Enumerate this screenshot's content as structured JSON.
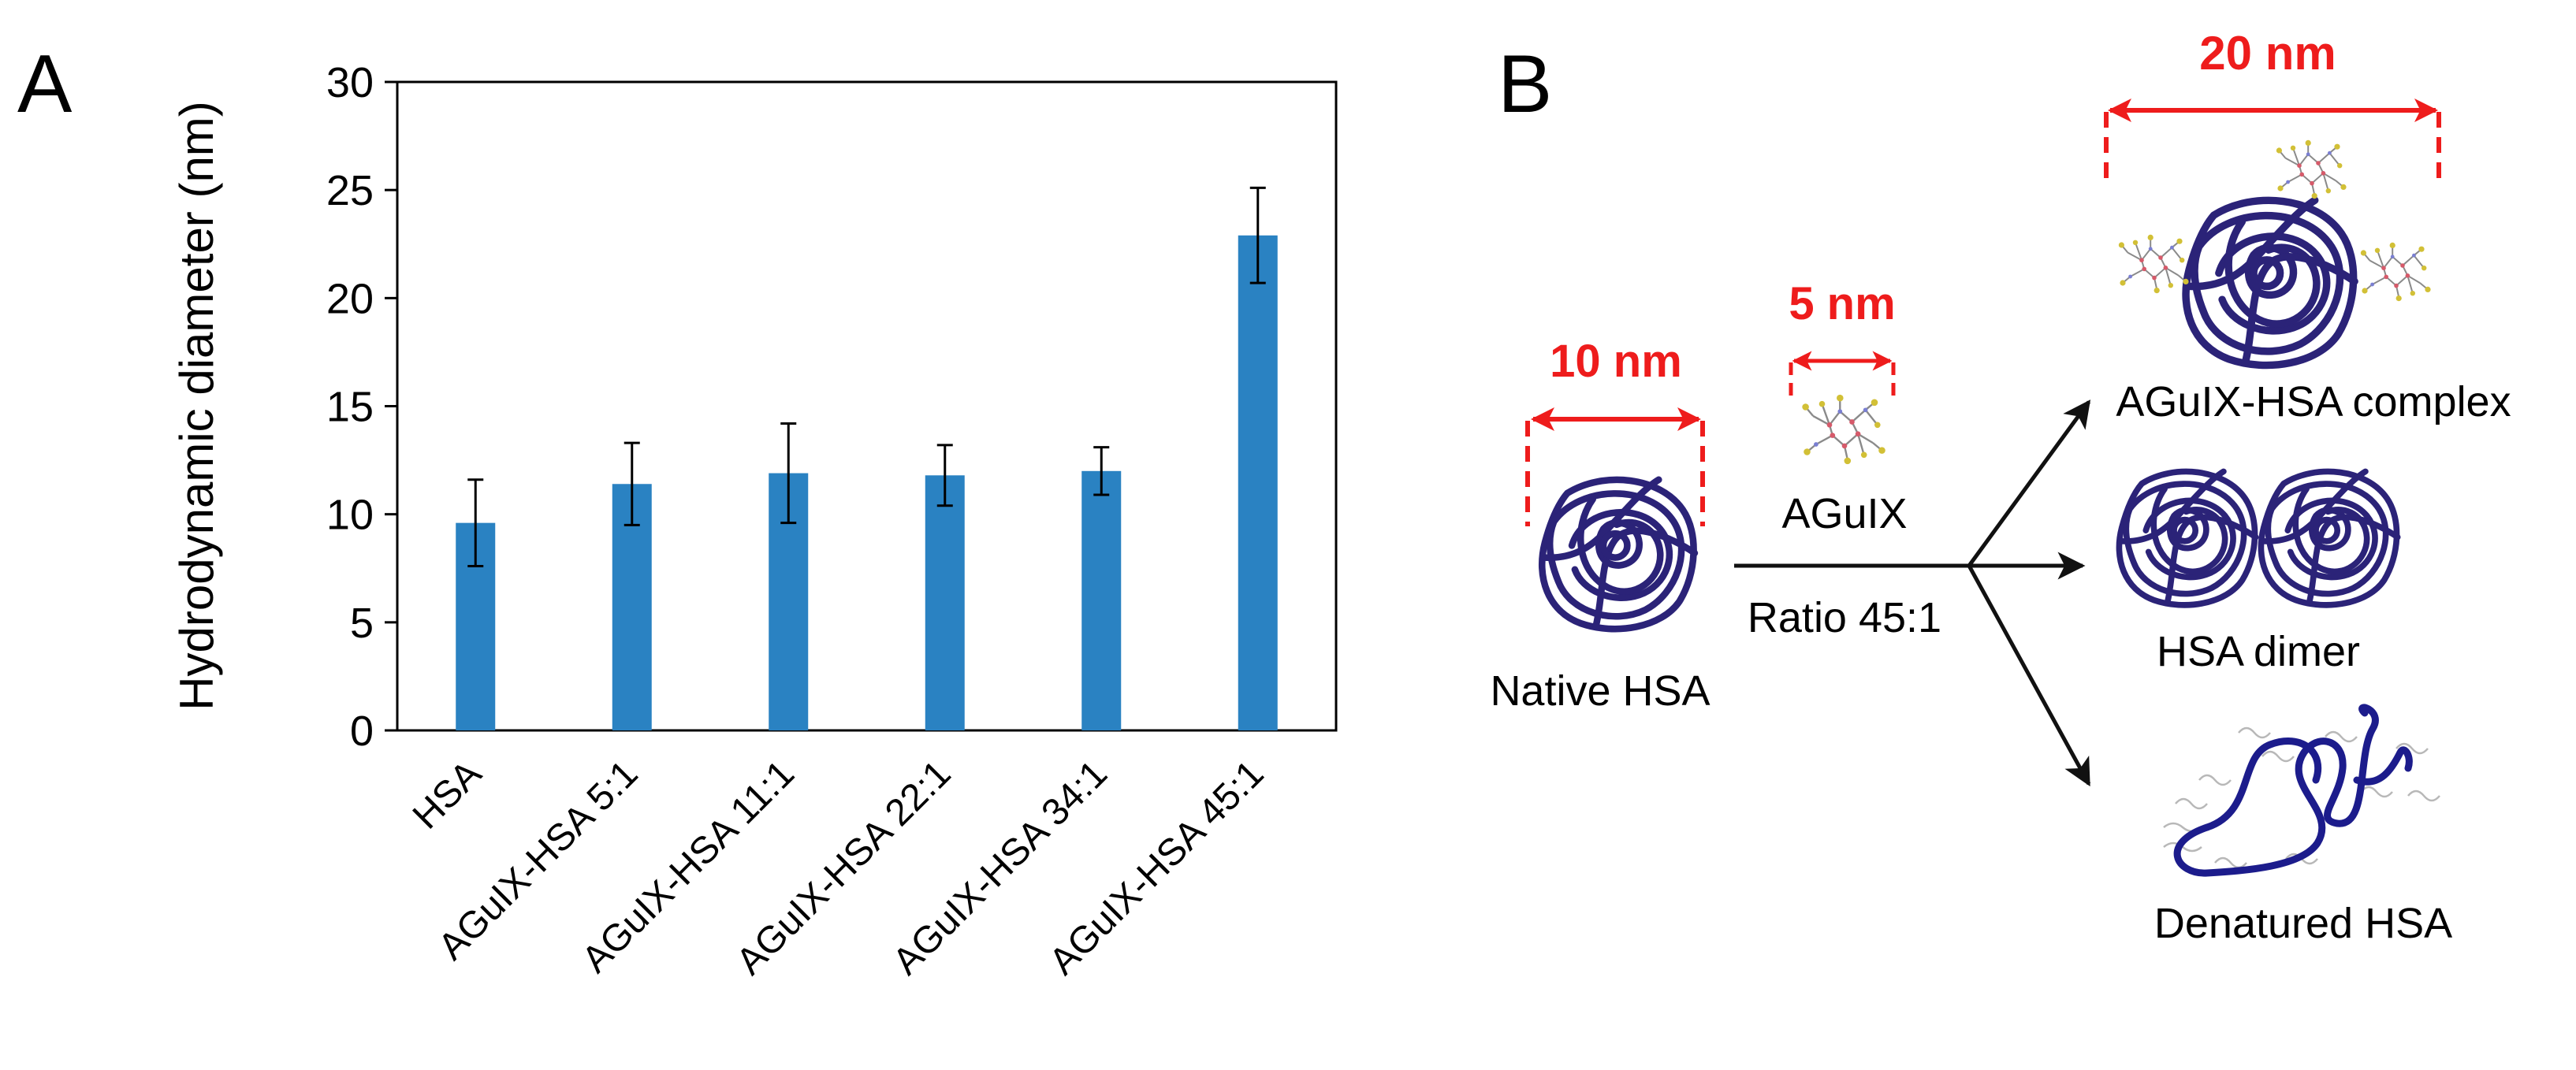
{
  "panel_a_label": "A",
  "panel_b_label": "B",
  "chart_data": {
    "type": "bar",
    "title": "",
    "xlabel": "",
    "ylabel": "Hydrodynamic diameter (nm)",
    "ylim": [
      0,
      30
    ],
    "yticks": [
      0,
      5,
      10,
      15,
      20,
      25,
      30
    ],
    "grid": false,
    "categories": [
      "HSA",
      "AGuIX-HSA 5:1",
      "AGuIX-HSA 11:1",
      "AGuIX-HSA 22:1",
      "AGuIX-HSA 34:1",
      "AGuIX-HSA 45:1"
    ],
    "values": [
      9.6,
      11.4,
      11.9,
      11.8,
      12.0,
      22.9
    ],
    "errors": [
      2.0,
      1.9,
      2.3,
      1.4,
      1.1,
      2.2
    ],
    "bar_color": "#2a82c2"
  },
  "diagram": {
    "size_10nm": "10 nm",
    "size_5nm": "5 nm",
    "size_20nm": "20 nm",
    "native_label": "Native HSA",
    "aguix_label": "AGuIX",
    "ratio_label": "Ratio 45:1",
    "complex_label": "AGuIX-HSA complex",
    "dimer_label": "HSA dimer",
    "denatured_label": "Denatured HSA",
    "colors": {
      "protein": "#2b2378",
      "denatured": "#1c1c8c",
      "dimension": "#ee1c1c",
      "arrow": "#111111"
    }
  }
}
